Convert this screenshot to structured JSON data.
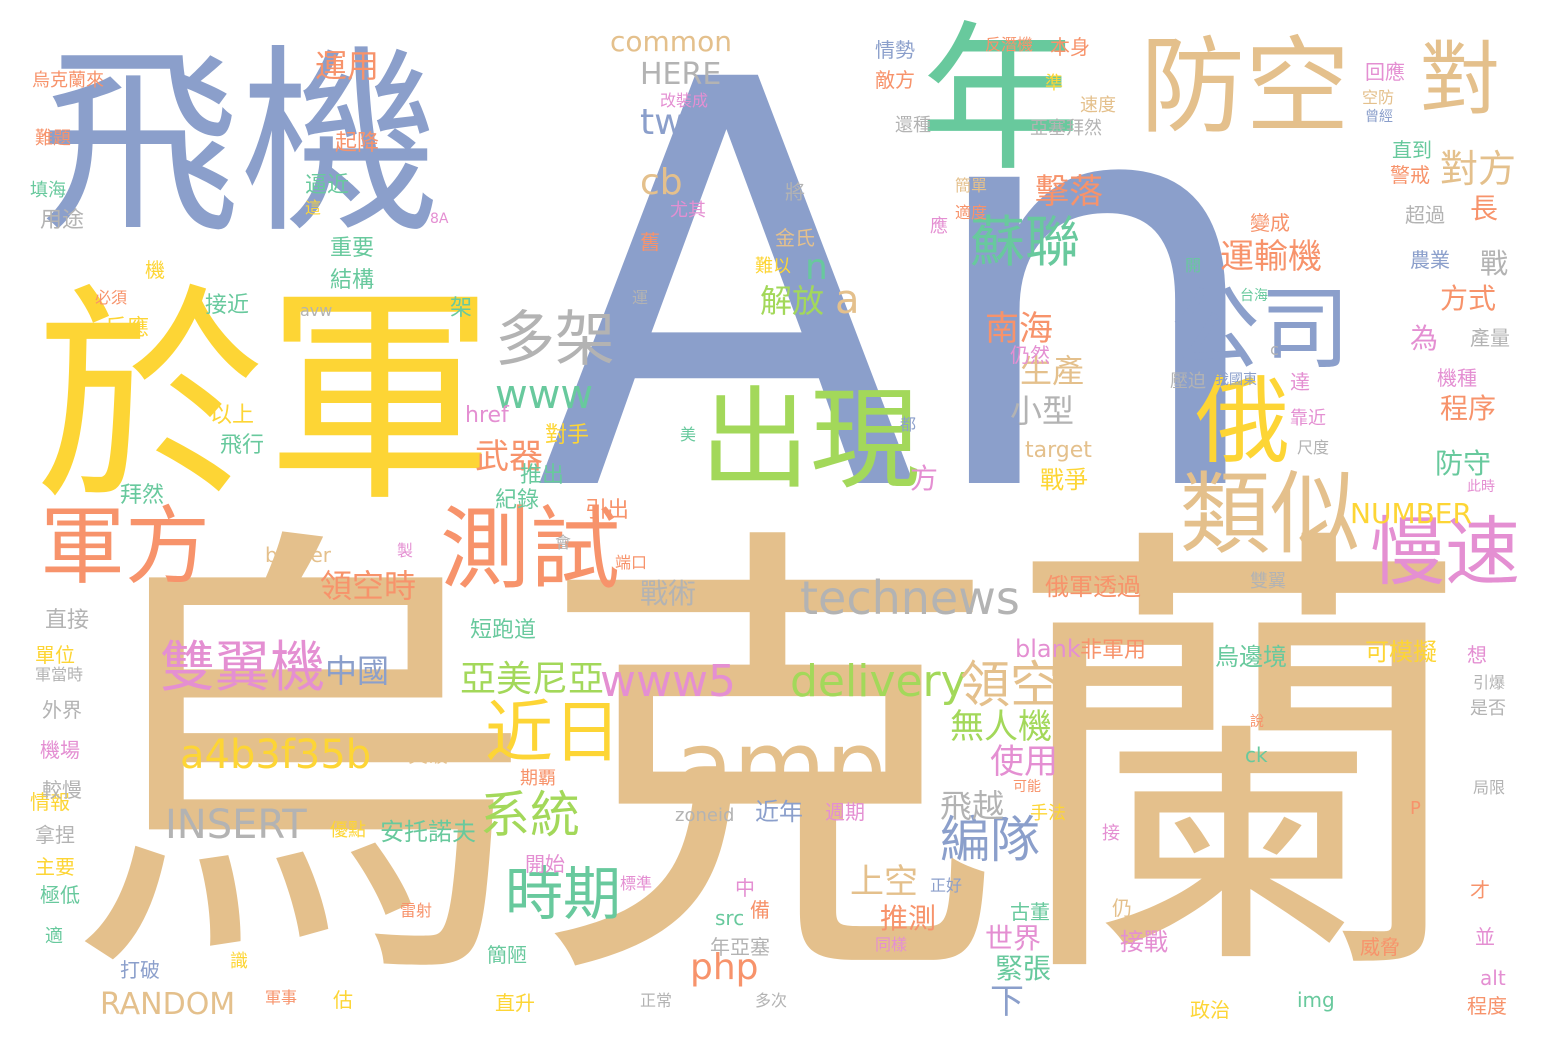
{
  "palette": {
    "blue": "#8b9fcb",
    "tan": "#e4c08c",
    "yellow": "#fdd535",
    "green": "#68c99d",
    "orange": "#f7936b",
    "pink": "#e48fd2",
    "lime": "#a3d85a",
    "gray": "#b3b3b3"
  },
  "word_cloud": {
    "words": [
      {
        "text": "An",
        "color": "#8b9fcb"
      },
      {
        "text": "烏克蘭",
        "color": "#e4c08c"
      },
      {
        "text": "飛機",
        "color": "#8b9fcb"
      },
      {
        "text": "於軍",
        "color": "#fdd535"
      },
      {
        "text": "年",
        "color": "#68c99d"
      },
      {
        "text": "防空",
        "color": "#e4c08c"
      },
      {
        "text": "出現",
        "color": "#a3d85a"
      },
      {
        "text": "公司",
        "color": "#8b9fcb"
      },
      {
        "text": "俄",
        "color": "#fdd535"
      },
      {
        "text": "類似",
        "color": "#e4c08c"
      },
      {
        "text": "測試",
        "color": "#f7936b"
      },
      {
        "text": "軍方",
        "color": "#f7936b"
      },
      {
        "text": "慢速",
        "color": "#e48fd2"
      },
      {
        "text": "amp",
        "color": "#e4c08c"
      },
      {
        "text": "technews",
        "color": "#b3b3b3"
      },
      {
        "text": "蘇聯",
        "color": "#68c99d"
      },
      {
        "text": "對",
        "color": "#e4c08c"
      },
      {
        "text": "多架",
        "color": "#b3b3b3"
      },
      {
        "text": "雙翼機",
        "color": "#e48fd2"
      },
      {
        "text": "近日",
        "color": "#fdd535"
      },
      {
        "text": "delivery",
        "color": "#a3d85a"
      },
      {
        "text": "www5",
        "color": "#e48fd2"
      },
      {
        "text": "a4b3f35b",
        "color": "#fdd535"
      },
      {
        "text": "時期",
        "color": "#68c99d"
      },
      {
        "text": "www",
        "color": "#68c99d"
      },
      {
        "text": "INSERT",
        "color": "#b3b3b3"
      },
      {
        "text": "領空",
        "color": "#e4c08c"
      },
      {
        "text": "編隊",
        "color": "#8b9fcb"
      },
      {
        "text": "系統",
        "color": "#a3d85a"
      },
      {
        "text": "亞美尼亞",
        "color": "#a3d85a"
      },
      {
        "text": "中國",
        "color": "#8b9fcb"
      },
      {
        "text": "對方",
        "color": "#e4c08c"
      },
      {
        "text": "擊落",
        "color": "#f7936b"
      },
      {
        "text": "運輸機",
        "color": "#f7936b"
      },
      {
        "text": "tw",
        "color": "#8b9fcb"
      },
      {
        "text": "cb",
        "color": "#e4c08c"
      },
      {
        "text": "解放",
        "color": "#a3d85a"
      },
      {
        "text": "n",
        "color": "#68c99d"
      },
      {
        "text": "a",
        "color": "#e4c08c"
      },
      {
        "text": "php",
        "color": "#f7936b"
      },
      {
        "text": "RANDOM",
        "color": "#e4c08c"
      },
      {
        "text": "NUMBER",
        "color": "#fdd535"
      },
      {
        "text": "common",
        "color": "#e4c08c"
      },
      {
        "text": "HERE",
        "color": "#b3b3b3"
      },
      {
        "text": "南海",
        "color": "#f7936b"
      },
      {
        "text": "武器",
        "color": "#f7936b"
      },
      {
        "text": "無人機",
        "color": "#a3d85a"
      },
      {
        "text": "使用",
        "color": "#e48fd2"
      },
      {
        "text": "生產",
        "color": "#e4c08c"
      },
      {
        "text": "小型",
        "color": "#b3b3b3"
      },
      {
        "text": "領空時",
        "color": "#f7936b"
      },
      {
        "text": "運用",
        "color": "#f7936b"
      },
      {
        "text": "飛越",
        "color": "#b3b3b3"
      },
      {
        "text": "上空",
        "color": "#e4c08c"
      },
      {
        "text": "方式",
        "color": "#f7936b"
      },
      {
        "text": "程序",
        "color": "#f7936b"
      },
      {
        "text": "防守",
        "color": "#68c99d"
      },
      {
        "text": "長",
        "color": "#f7936b"
      },
      {
        "text": "戰術",
        "color": "#b3b3b3"
      },
      {
        "text": "方",
        "color": "#e48fd2"
      },
      {
        "text": "為",
        "color": "#e48fd2"
      },
      {
        "text": "戰",
        "color": "#b3b3b3"
      },
      {
        "text": "推測",
        "color": "#f7936b"
      },
      {
        "text": "世界",
        "color": "#e48fd2"
      },
      {
        "text": "緊張",
        "color": "#68c99d"
      },
      {
        "text": "下",
        "color": "#8b9fcb"
      },
      {
        "text": "安托諾夫",
        "color": "#68c99d"
      },
      {
        "text": "近年",
        "color": "#8b9fcb"
      },
      {
        "text": "接戰",
        "color": "#e48fd2"
      },
      {
        "text": "可模擬",
        "color": "#fdd535"
      },
      {
        "text": "烏邊境",
        "color": "#68c99d"
      },
      {
        "text": "俄軍透過",
        "color": "#f7936b"
      },
      {
        "text": "blank",
        "color": "#e48fd2"
      },
      {
        "text": "非軍用",
        "color": "#f7936b"
      },
      {
        "text": "target",
        "color": "#e4c08c"
      },
      {
        "text": "戰爭",
        "color": "#fdd535"
      },
      {
        "text": "href",
        "color": "#e48fd2"
      },
      {
        "text": "對手",
        "color": "#fdd535"
      },
      {
        "text": "推出",
        "color": "#68c99d"
      },
      {
        "text": "引出",
        "color": "#f7936b"
      },
      {
        "text": "紀錄",
        "color": "#68c99d"
      },
      {
        "text": "border",
        "color": "#e4c08c"
      },
      {
        "text": "短跑道",
        "color": "#68c99d"
      },
      {
        "text": "以上",
        "color": "#fdd535"
      },
      {
        "text": "飛行",
        "color": "#68c99d"
      },
      {
        "text": "拜然",
        "color": "#68c99d"
      },
      {
        "text": "接近",
        "color": "#68c99d"
      },
      {
        "text": "avw",
        "color": "#b3b3b3"
      },
      {
        "text": "架",
        "color": "#68c99d"
      },
      {
        "text": "反應",
        "color": "#fdd535"
      },
      {
        "text": "必須",
        "color": "#f7936b"
      },
      {
        "text": "機",
        "color": "#fdd535"
      },
      {
        "text": "結構",
        "color": "#68c99d"
      },
      {
        "text": "重要",
        "color": "#68c99d"
      },
      {
        "text": "逼近",
        "color": "#68c99d"
      },
      {
        "text": "起降",
        "color": "#f7936b"
      },
      {
        "text": "用途",
        "color": "#b3b3b3"
      },
      {
        "text": "填海",
        "color": "#68c99d"
      },
      {
        "text": "難題",
        "color": "#f7936b"
      },
      {
        "text": "烏克蘭來",
        "color": "#f7936b"
      },
      {
        "text": "情勢",
        "color": "#8b9fcb"
      },
      {
        "text": "敵方",
        "color": "#f7936b"
      },
      {
        "text": "反潛機",
        "color": "#f7936b"
      },
      {
        "text": "本身",
        "color": "#f7936b"
      },
      {
        "text": "改裝成",
        "color": "#e48fd2"
      },
      {
        "text": "還種",
        "color": "#b3b3b3"
      },
      {
        "text": "準",
        "color": "#fdd535"
      },
      {
        "text": "亞塞拜然",
        "color": "#b3b3b3"
      },
      {
        "text": "速度",
        "color": "#e4c08c"
      },
      {
        "text": "回應",
        "color": "#e48fd2"
      },
      {
        "text": "空防",
        "color": "#e4c08c"
      },
      {
        "text": "曾經",
        "color": "#8b9fcb"
      },
      {
        "text": "直到",
        "color": "#68c99d"
      },
      {
        "text": "警戒",
        "color": "#f7936b"
      },
      {
        "text": "超過",
        "color": "#b3b3b3"
      },
      {
        "text": "變成",
        "color": "#f7936b"
      },
      {
        "text": "農業",
        "color": "#8b9fcb"
      },
      {
        "text": "簡單",
        "color": "#e4c08c"
      },
      {
        "text": "適度",
        "color": "#f7936b"
      },
      {
        "text": "將",
        "color": "#b3b3b3"
      },
      {
        "text": "尤其",
        "color": "#e48fd2"
      },
      {
        "text": "舊",
        "color": "#f7936b"
      },
      {
        "text": "金氏",
        "color": "#e4c08c"
      },
      {
        "text": "難以",
        "color": "#fdd535"
      },
      {
        "text": "應",
        "color": "#e48fd2"
      },
      {
        "text": "開",
        "color": "#68c99d"
      },
      {
        "text": "台海",
        "color": "#68c99d"
      },
      {
        "text": "仍然",
        "color": "#e48fd2"
      },
      {
        "text": "產量",
        "color": "#b3b3b3"
      },
      {
        "text": "機種",
        "color": "#e48fd2"
      },
      {
        "text": "靠近",
        "color": "#e48fd2"
      },
      {
        "text": "尺度",
        "color": "#b3b3b3"
      },
      {
        "text": "此時",
        "color": "#e48fd2"
      },
      {
        "text": "壓迫",
        "color": "#b3b3b3"
      },
      {
        "text": "我國東",
        "color": "#8b9fcb"
      },
      {
        "text": "達",
        "color": "#e48fd2"
      },
      {
        "text": "美",
        "color": "#68c99d"
      },
      {
        "text": "都",
        "color": "#8b9fcb"
      },
      {
        "text": "雙翼",
        "color": "#b3b3b3"
      },
      {
        "text": "想",
        "color": "#e48fd2"
      },
      {
        "text": "引爆",
        "color": "#b3b3b3"
      },
      {
        "text": "是否",
        "color": "#b3b3b3"
      },
      {
        "text": "說",
        "color": "#f7936b"
      },
      {
        "text": "ck",
        "color": "#68c99d"
      },
      {
        "text": "zoneid",
        "color": "#b3b3b3"
      },
      {
        "text": "週期",
        "color": "#e48fd2"
      },
      {
        "text": "可能",
        "color": "#f7936b"
      },
      {
        "text": "手法",
        "color": "#fdd535"
      },
      {
        "text": "P",
        "color": "#f7936b"
      },
      {
        "text": "局限",
        "color": "#b3b3b3"
      },
      {
        "text": "接",
        "color": "#e48fd2"
      },
      {
        "text": "仍",
        "color": "#e4c08c"
      },
      {
        "text": "才",
        "color": "#f7936b"
      },
      {
        "text": "並",
        "color": "#e48fd2"
      },
      {
        "text": "alt",
        "color": "#e48fd2"
      },
      {
        "text": "程度",
        "color": "#f7936b"
      },
      {
        "text": "威脅",
        "color": "#f7936b"
      },
      {
        "text": "政治",
        "color": "#fdd535"
      },
      {
        "text": "img",
        "color": "#68c99d"
      },
      {
        "text": "古董",
        "color": "#68c99d"
      },
      {
        "text": "同樣",
        "color": "#e48fd2"
      },
      {
        "text": "正好",
        "color": "#8b9fcb"
      },
      {
        "text": "開始",
        "color": "#e48fd2"
      },
      {
        "text": "期覇",
        "color": "#f7936b"
      },
      {
        "text": "優點",
        "color": "#fdd535"
      },
      {
        "text": "會",
        "color": "#b3b3b3"
      },
      {
        "text": "突破",
        "color": "#e4c08c"
      },
      {
        "text": "標準",
        "color": "#e48fd2"
      },
      {
        "text": "中",
        "color": "#e48fd2"
      },
      {
        "text": "備",
        "color": "#f7936b"
      },
      {
        "text": "src",
        "color": "#68c99d"
      },
      {
        "text": "年亞塞",
        "color": "#b3b3b3"
      },
      {
        "text": "雷射",
        "color": "#f7936b"
      },
      {
        "text": "多次",
        "color": "#b3b3b3"
      },
      {
        "text": "正常",
        "color": "#b3b3b3"
      },
      {
        "text": "直升",
        "color": "#fdd535"
      },
      {
        "text": "簡陋",
        "color": "#68c99d"
      },
      {
        "text": "估",
        "color": "#fdd535"
      },
      {
        "text": "軍事",
        "color": "#f7936b"
      },
      {
        "text": "識",
        "color": "#fdd535"
      },
      {
        "text": "打破",
        "color": "#8b9fcb"
      },
      {
        "text": "適",
        "color": "#68c99d"
      },
      {
        "text": "極低",
        "color": "#68c99d"
      },
      {
        "text": "主要",
        "color": "#fdd535"
      },
      {
        "text": "拿捏",
        "color": "#b3b3b3"
      },
      {
        "text": "情報",
        "color": "#fdd535"
      },
      {
        "text": "較慢",
        "color": "#b3b3b3"
      },
      {
        "text": "機場",
        "color": "#e48fd2"
      },
      {
        "text": "外界",
        "color": "#b3b3b3"
      },
      {
        "text": "軍當時",
        "color": "#b3b3b3"
      },
      {
        "text": "單位",
        "color": "#fdd535"
      },
      {
        "text": "直接",
        "color": "#b3b3b3"
      },
      {
        "text": "8A",
        "color": "#e48fd2"
      },
      {
        "text": "這",
        "color": "#fdd535"
      },
      {
        "text": "運",
        "color": "#b3b3b3"
      },
      {
        "text": "c",
        "color": "#b3b3b3"
      },
      {
        "text": "製",
        "color": "#e48fd2"
      },
      {
        "text": "端口",
        "color": "#f7936b"
      }
    ]
  }
}
